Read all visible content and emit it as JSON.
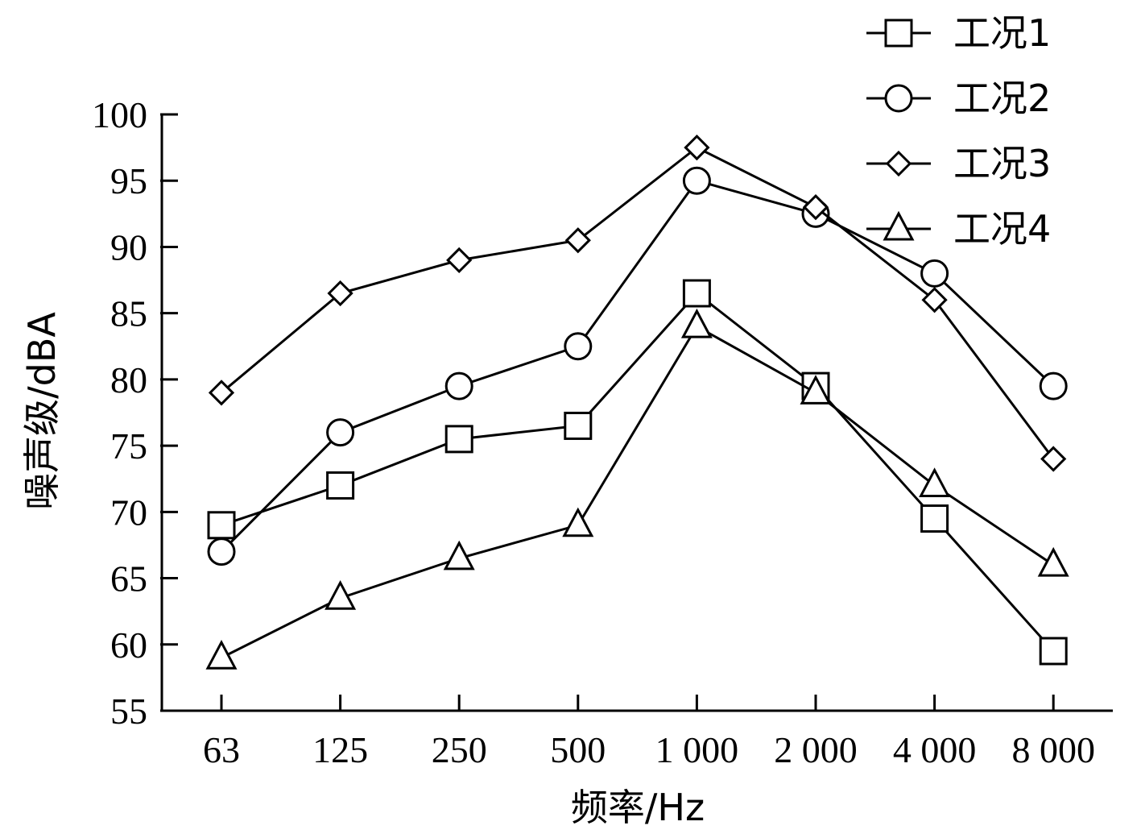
{
  "chart_data": {
    "type": "line",
    "title": "",
    "xlabel": "频率/Hz",
    "ylabel": "噪声级/dBA",
    "categories": [
      "63",
      "125",
      "250",
      "500",
      "1 000",
      "2 000",
      "4 000",
      "8 000"
    ],
    "ylim": [
      55,
      100
    ],
    "yticks": [
      55,
      60,
      65,
      70,
      75,
      80,
      85,
      90,
      95,
      100
    ],
    "grid": false,
    "legend_position": "top-right",
    "series": [
      {
        "name": "工况1",
        "marker": "square",
        "values": [
          69.0,
          72.0,
          75.5,
          76.5,
          86.5,
          79.5,
          69.5,
          59.5
        ]
      },
      {
        "name": "工况2",
        "marker": "circle",
        "values": [
          67.0,
          76.0,
          79.5,
          82.5,
          95.0,
          92.5,
          88.0,
          79.5
        ]
      },
      {
        "name": "工况3",
        "marker": "diamond",
        "values": [
          79.0,
          86.5,
          89.0,
          90.5,
          97.5,
          93.0,
          86.0,
          74.0
        ]
      },
      {
        "name": "工况4",
        "marker": "triangle",
        "values": [
          59.0,
          63.5,
          66.5,
          69.0,
          84.0,
          79.0,
          72.0,
          66.0
        ]
      }
    ],
    "line_color": "#000000"
  }
}
